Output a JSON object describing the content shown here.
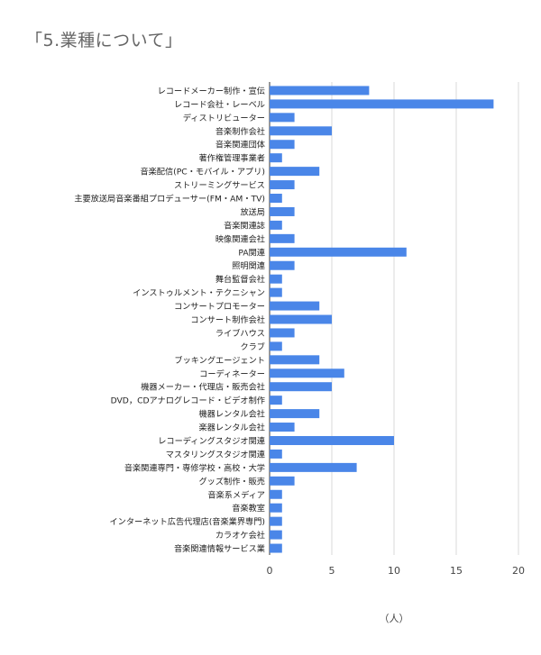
{
  "title": "「5.業種について」",
  "chart_data": {
    "type": "bar",
    "orientation": "horizontal",
    "title": "「5.業種について」",
    "xlabel": "（人）",
    "ylabel": "",
    "xlim": [
      0,
      20
    ],
    "xticks": [
      0,
      5,
      10,
      15,
      20
    ],
    "grid": true,
    "bar_color": "#4a86e8",
    "categories": [
      "レコードメーカー制作・宣伝",
      "レコード会社・レーベル",
      "ディストリビューター",
      "音楽制作会社",
      "音楽関連団体",
      "著作権管理事業者",
      "音楽配信(PC・モバイル・アプリ)",
      "ストリーミングサービス",
      "主要放送局音楽番組プロデューサー(FM・AM・TV)",
      "放送局",
      "音楽関連誌",
      "映像関連会社",
      "PA関連",
      "照明関連",
      "舞台監督会社",
      "インストゥルメント・テクニシャン",
      "コンサートプロモーター",
      "コンサート制作会社",
      "ライブハウス",
      "クラブ",
      "ブッキングエージェント",
      "コーディネーター",
      "機器メーカー・代理店・販売会社",
      "DVD，CDアナログレコード・ビデオ制作",
      "機器レンタル会社",
      "楽器レンタル会社",
      "レコーディングスタジオ関連",
      "マスタリングスタジオ関連",
      "音楽関連専門・専修学校・高校・大学",
      "グッズ制作・販売",
      "音楽系メディア",
      "音楽教室",
      "インターネット広告代理店(音楽業界専門)",
      "カラオケ会社",
      "音楽関連情報サービス業"
    ],
    "values": [
      8,
      18,
      2,
      5,
      2,
      1,
      4,
      2,
      1,
      2,
      1,
      2,
      11,
      2,
      1,
      1,
      4,
      5,
      2,
      1,
      4,
      6,
      5,
      1,
      4,
      2,
      10,
      1,
      7,
      2,
      1,
      1,
      1,
      1,
      1
    ]
  }
}
